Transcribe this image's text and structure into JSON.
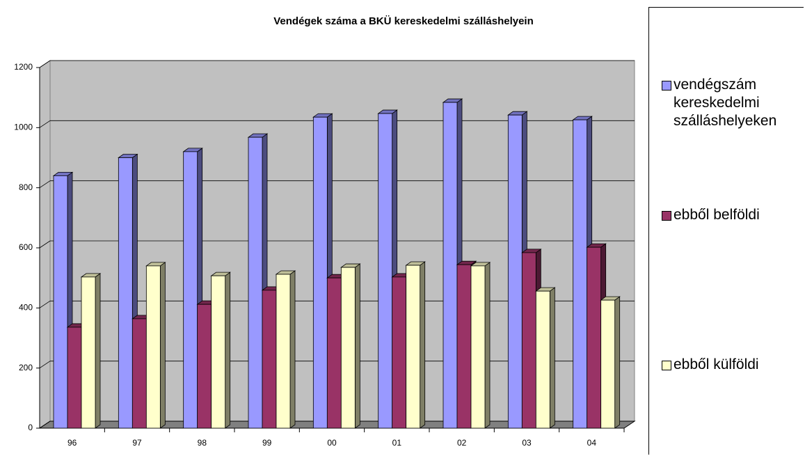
{
  "chart_data": {
    "type": "bar3d",
    "title": "Vendégek száma a BKÜ kereskedelmi szálláshelyein",
    "categories": [
      "96",
      "97",
      "98",
      "99",
      "00",
      "01",
      "02",
      "03",
      "04"
    ],
    "series": [
      {
        "name": "vendégszám kereskedelmi szálláshelyeken",
        "color": "#9999ff",
        "values": [
          840,
          900,
          920,
          968,
          1035,
          1047,
          1084,
          1042,
          1026
        ]
      },
      {
        "name": "ebből belföldi",
        "color": "#993366",
        "values": [
          336,
          364,
          412,
          459,
          500,
          503,
          544,
          584,
          602
        ]
      },
      {
        "name": "ebből külföldi",
        "color": "#ffffcc",
        "values": [
          503,
          540,
          507,
          512,
          535,
          542,
          540,
          456,
          426
        ]
      }
    ],
    "ylim": [
      0,
      1200
    ],
    "yticks": [
      0,
      200,
      400,
      600,
      800,
      1000,
      1200
    ],
    "grid": true
  }
}
